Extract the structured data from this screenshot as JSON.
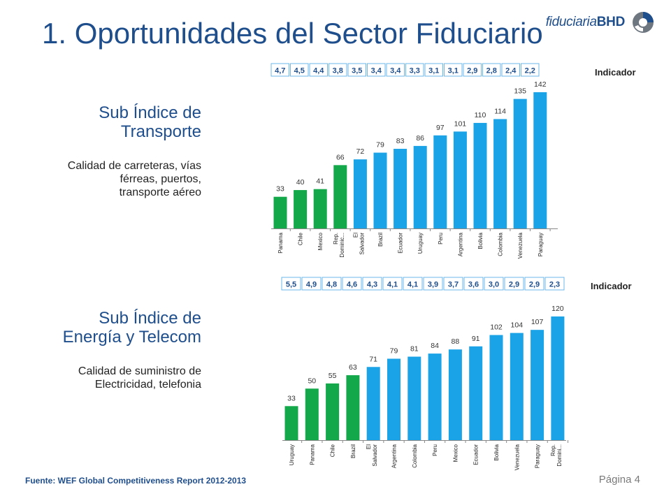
{
  "title": "1. Oportunidades del Sector Fiduciario",
  "logo": {
    "text_italic": "fiduciaria",
    "text_bold": "BHD"
  },
  "section1": {
    "title": "Sub Índice de\nTransporte",
    "description": "Calidad de carreteras, vías\nférreas, puertos,\ntransporte aéreo",
    "indicator_label": "Indicador"
  },
  "section2": {
    "title": "Sub Índice de\nEnergía y Telecom",
    "description": "Calidad de suministro de\nElectricidad, telefonia",
    "indicator_label": "Indicador"
  },
  "footer": {
    "source": "Fuente: WEF Global Competitiveness Report 2012-2013",
    "page": "Página 4"
  },
  "colors": {
    "highlight": "#13A84A",
    "normal": "#1BA3E8",
    "title": "#1F4E8C",
    "indicator_border": "#6CB7E8"
  },
  "chart_data": [
    {
      "type": "bar",
      "categories": [
        "Panama",
        "Chile",
        "Mexico",
        "Rep. Dominic...",
        "El Salvador",
        "Brazil",
        "Ecuador",
        "Uruguay",
        "Peru",
        "Argentina",
        "Bolivia",
        "Colombia",
        "Venezuela",
        "Paraguay"
      ],
      "values": [
        33,
        40,
        41,
        66,
        72,
        79,
        83,
        86,
        97,
        101,
        110,
        114,
        135,
        142
      ],
      "indicators": [
        "4,7",
        "4,5",
        "4,4",
        "3,8",
        "3,5",
        "3,4",
        "3,4",
        "3,3",
        "3,1",
        "3,1",
        "2,9",
        "2,8",
        "2,4",
        "2,2"
      ],
      "highlight_count": 4,
      "ylim": [
        0,
        142
      ]
    },
    {
      "type": "bar",
      "categories": [
        "Uruguay",
        "Panama",
        "Chile",
        "Brazil",
        "El Salvador",
        "Argentina",
        "Colombia",
        "Peru",
        "Mexico",
        "Ecuador",
        "Bolivia",
        "Venezuela",
        "Paraguay",
        "Rep. Domini..."
      ],
      "values": [
        33,
        50,
        55,
        63,
        71,
        79,
        81,
        84,
        88,
        91,
        102,
        104,
        107,
        120
      ],
      "indicators": [
        "5,5",
        "4,9",
        "4,8",
        "4,6",
        "4,3",
        "4,1",
        "4,1",
        "3,9",
        "3,7",
        "3,6",
        "3,0",
        "2,9",
        "2,9",
        "2,3"
      ],
      "highlight_count": 4,
      "ylim": [
        0,
        120
      ]
    }
  ]
}
